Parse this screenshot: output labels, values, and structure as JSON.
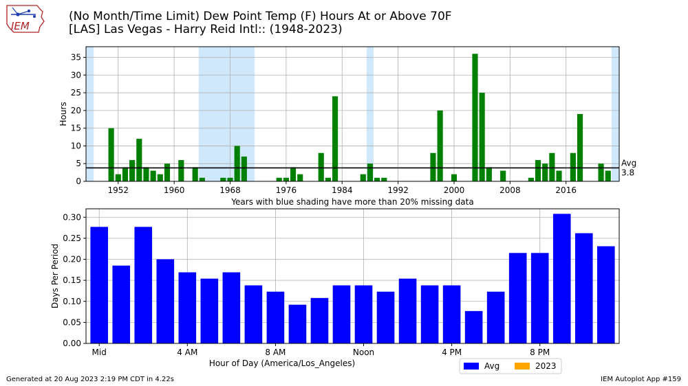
{
  "header": {
    "title_line1": "(No Month/Time Limit) Dew Point Temp (F) Hours At or Above 70F",
    "title_line2": "[LAS] Las Vegas - Harry Reid Intl:: (1948-2023)",
    "logo_text": "IEM"
  },
  "footer": {
    "generated": "Generated at 20 Aug 2023 2:19 PM CDT in 4.22s",
    "app": "IEM Autoplot App #159"
  },
  "colors": {
    "top_bars": "#008000",
    "bottom_bars": "#0000ff",
    "shading": "#cfe8fb",
    "legend_2023": "#ffa500",
    "grid": "#b0b0b0"
  },
  "chart_data": [
    {
      "type": "bar",
      "ylabel": "Hours",
      "xlabel": "Years with blue shading have more than 20% missing data",
      "xlim": [
        1947.4,
        2023.6
      ],
      "ylim": [
        0,
        38
      ],
      "xticks": [
        1952,
        1960,
        1968,
        1976,
        1984,
        1992,
        2000,
        2008,
        2016
      ],
      "yticks": [
        0,
        5,
        10,
        15,
        20,
        25,
        30,
        35
      ],
      "x": [
        1948,
        1949,
        1950,
        1951,
        1952,
        1953,
        1954,
        1955,
        1956,
        1957,
        1958,
        1959,
        1960,
        1961,
        1962,
        1963,
        1964,
        1965,
        1966,
        1967,
        1968,
        1969,
        1970,
        1971,
        1972,
        1973,
        1974,
        1975,
        1976,
        1977,
        1978,
        1979,
        1980,
        1981,
        1982,
        1983,
        1984,
        1985,
        1986,
        1987,
        1988,
        1989,
        1990,
        1991,
        1992,
        1993,
        1994,
        1995,
        1996,
        1997,
        1998,
        1999,
        2000,
        2001,
        2002,
        2003,
        2004,
        2005,
        2006,
        2007,
        2008,
        2009,
        2010,
        2011,
        2012,
        2013,
        2014,
        2015,
        2016,
        2017,
        2018,
        2019,
        2020,
        2021,
        2022,
        2023
      ],
      "values": [
        0,
        0,
        0,
        15,
        2,
        4,
        6,
        12,
        4,
        3,
        2,
        5,
        0,
        6,
        0,
        4,
        1,
        0,
        0,
        1,
        1,
        10,
        7,
        0,
        0,
        0,
        0,
        1,
        1,
        4,
        2,
        0,
        0,
        8,
        1,
        24,
        0,
        0,
        0,
        2,
        5,
        1,
        1,
        0,
        0,
        0,
        0,
        0,
        0,
        8,
        20,
        0,
        2,
        0,
        0,
        36,
        25,
        4,
        0,
        3,
        0,
        0,
        0,
        1,
        6,
        5,
        8,
        3,
        0,
        8,
        19,
        0,
        0,
        5,
        3,
        0
      ],
      "missing_shading": [
        [
          1947.4,
          1948.5
        ],
        [
          1963.5,
          1971.5
        ],
        [
          1987.5,
          1988.5
        ],
        [
          2022.5,
          2023.6
        ]
      ],
      "average": {
        "value": 3.8,
        "label": "Avg",
        "value_label": "3.8"
      },
      "grid": true
    },
    {
      "type": "bar",
      "ylabel": "Days Per Period",
      "xlabel": "Hour of Day (America/Los_Angeles)",
      "xlim": [
        -0.6,
        23.6
      ],
      "ylim": [
        0,
        0.32
      ],
      "xticks": [
        0,
        4,
        8,
        12,
        16,
        20
      ],
      "xtick_labels": [
        "Mid",
        "4 AM",
        "8 AM",
        "Noon",
        "4 PM",
        "8 PM"
      ],
      "yticks": [
        "0.00",
        "0.05",
        "0.10",
        "0.15",
        "0.20",
        "0.25",
        "0.30"
      ],
      "x": [
        0,
        1,
        2,
        3,
        4,
        5,
        6,
        7,
        8,
        9,
        10,
        11,
        12,
        13,
        14,
        15,
        16,
        17,
        18,
        19,
        20,
        21,
        22,
        23
      ],
      "series": [
        {
          "name": "Avg",
          "values": [
            0.277,
            0.185,
            0.277,
            0.2,
            0.169,
            0.154,
            0.169,
            0.138,
            0.123,
            0.092,
            0.108,
            0.138,
            0.138,
            0.123,
            0.154,
            0.138,
            0.138,
            0.077,
            0.123,
            0.215,
            0.215,
            0.308,
            0.262,
            0.231
          ]
        },
        {
          "name": "2023",
          "values": [
            0,
            0,
            0,
            0,
            0,
            0,
            0,
            0,
            0,
            0,
            0,
            0,
            0,
            0,
            0,
            0,
            0,
            0,
            0,
            0,
            0,
            0,
            0,
            0
          ]
        }
      ],
      "legend": "bottom-right",
      "grid": true
    }
  ]
}
